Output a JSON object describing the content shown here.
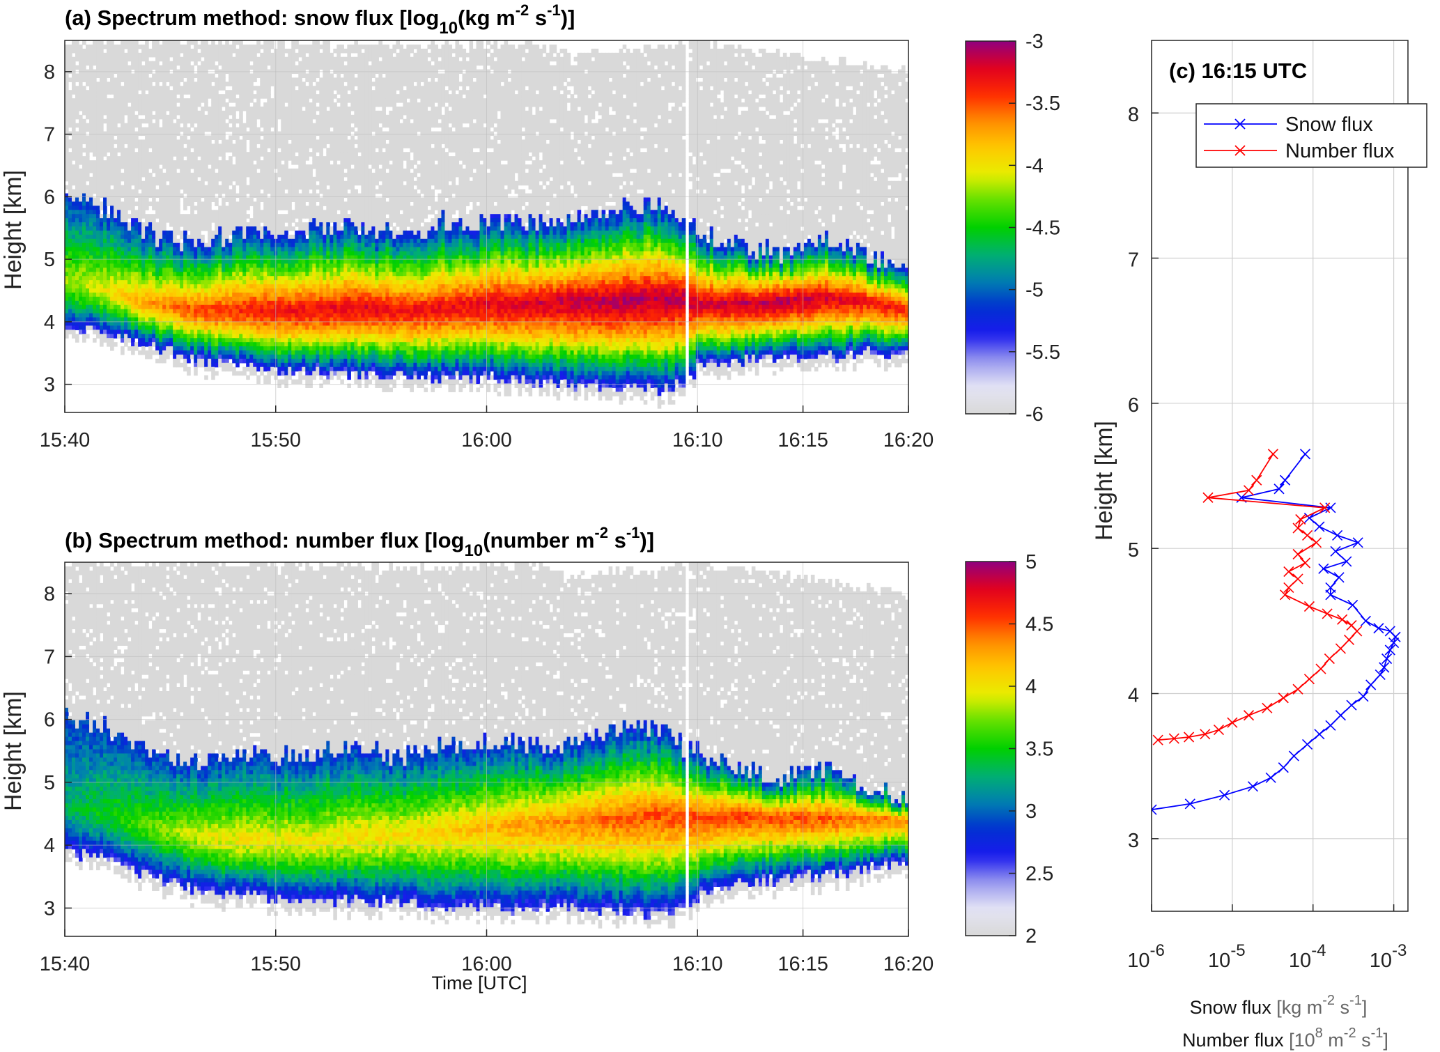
{
  "panels": {
    "a": {
      "title": "(a) Spectrum  method: snow flux [log",
      "title_sub": "10",
      "title_mid": "(kg m",
      "title_sup1": "-2",
      "title_sp": " s",
      "title_sup2": "-1",
      "title_end": ")]",
      "ylabel": "Height [km]",
      "xticks": [
        "15:40",
        "15:50",
        "16:00",
        "16:10",
        "16:15",
        "16:20"
      ],
      "yticks": [
        "3",
        "4",
        "5",
        "6",
        "7",
        "8"
      ],
      "colorbar_ticks": [
        "-3",
        "-3.5",
        "-4",
        "-4.5",
        "-5",
        "-5.5",
        "-6"
      ]
    },
    "b": {
      "title": "(b) Spectrum  method: number flux [log",
      "title_sub": "10",
      "title_mid": "(number m",
      "title_sup1": "-2",
      "title_sp": " s",
      "title_sup2": "-1",
      "title_end": ")]",
      "ylabel": "Height [km]",
      "xlabel": "Time [UTC]",
      "xticks": [
        "15:40",
        "15:50",
        "16:00",
        "16:10",
        "16:15",
        "16:20"
      ],
      "yticks": [
        "3",
        "4",
        "5",
        "6",
        "7",
        "8"
      ],
      "colorbar_ticks": [
        "5",
        "4.5",
        "4",
        "3.5",
        "3",
        "2.5",
        "2"
      ]
    },
    "c": {
      "annotation": "(c) 16:15 UTC",
      "ylabel": "Height [km]",
      "yticks": [
        "3",
        "4",
        "5",
        "6",
        "7",
        "8"
      ],
      "xtick_base": "10",
      "xtick_exps": [
        "-6",
        "-5",
        "-4",
        "-3"
      ],
      "xlabel_line1_a": "Snow flux ",
      "xlabel_line1_b": "[kg m",
      "xlabel_line1_sup1": "-2",
      "xlabel_line1_c": " s",
      "xlabel_line1_sup2": "-1",
      "xlabel_line1_d": "]",
      "xlabel_line2_a": "Number flux ",
      "xlabel_line2_b": "[10",
      "xlabel_line2_sup0": "8",
      "xlabel_line2_c": " m",
      "xlabel_line2_sup1": "-2",
      "xlabel_line2_d": " s",
      "xlabel_line2_sup2": "-1",
      "xlabel_line2_e": "]",
      "legend": [
        "Snow flux",
        "Number flux"
      ]
    }
  },
  "colors": {
    "snow_series": "#0000ff",
    "number_series": "#ff0000",
    "background_echo": "#dadada",
    "colormap": [
      "#d9d9d9",
      "#e4e4f4",
      "#9898ee",
      "#1a1aee",
      "#0030d0",
      "#0080b0",
      "#00b070",
      "#00d000",
      "#60e000",
      "#e8ee00",
      "#ffc800",
      "#ff8c00",
      "#ff2a00",
      "#e00020",
      "#900080"
    ]
  },
  "chart_data": [
    {
      "type": "heatmap",
      "panel": "a",
      "title": "(a) Spectrum method: snow flux [log10(kg m-2 s-1)]",
      "xlabel": "",
      "ylabel": "Height [km]",
      "x_range": [
        "15:40",
        "16:20"
      ],
      "ylim": [
        2.55,
        8.5
      ],
      "color_range": [
        -6,
        -3
      ],
      "colorbar_ticks": [
        -3,
        -3.5,
        -4,
        -4.5,
        -5,
        -5.5,
        -6
      ],
      "gap_time": "16:09.5",
      "echo_profile": {
        "time_min": [
          0,
          2,
          4,
          6,
          8,
          10,
          12,
          14,
          16,
          18,
          20,
          22,
          24,
          26,
          28,
          29.5,
          30,
          32,
          34,
          36,
          38,
          40
        ],
        "cloud_top_km": [
          6.1,
          5.8,
          5.4,
          5.3,
          5.4,
          5.4,
          5.5,
          5.5,
          5.4,
          5.6,
          5.6,
          5.6,
          5.6,
          5.8,
          5.9,
          5.5,
          5.5,
          5.2,
          5.1,
          5.3,
          5.1,
          4.7
        ],
        "cloud_base_km": [
          3.9,
          3.8,
          3.6,
          3.4,
          3.3,
          3.2,
          3.2,
          3.15,
          3.15,
          3.1,
          3.1,
          3.05,
          3.0,
          3.0,
          2.9,
          3.0,
          3.3,
          3.35,
          3.4,
          3.45,
          3.5,
          3.5
        ],
        "peak_height_km": [
          4.7,
          4.5,
          4.3,
          4.2,
          4.2,
          4.2,
          4.2,
          4.25,
          4.2,
          4.25,
          4.3,
          4.3,
          4.35,
          4.35,
          4.4,
          4.4,
          4.3,
          4.3,
          4.35,
          4.4,
          4.35,
          4.2
        ],
        "peak_value": [
          -4.2,
          -4.0,
          -3.7,
          -3.5,
          -3.4,
          -3.3,
          -3.3,
          -3.25,
          -3.3,
          -3.3,
          -3.25,
          -3.2,
          -3.15,
          -3.1,
          -3.1,
          -3.1,
          -3.2,
          -3.15,
          -3.1,
          -3.2,
          -3.3,
          -3.4
        ],
        "echo_top_km": [
          8.5,
          8.5,
          8.5,
          8.5,
          8.5,
          8.45,
          8.45,
          8.45,
          8.4,
          8.4,
          8.45,
          8.45,
          8.3,
          8.35,
          8.4,
          8.5,
          8.5,
          8.4,
          8.3,
          8.2,
          8.1,
          8.0
        ]
      }
    },
    {
      "type": "heatmap",
      "panel": "b",
      "title": "(b) Spectrum method: number flux [log10(number m-2 s-1)]",
      "xlabel": "Time [UTC]",
      "ylabel": "Height [km]",
      "x_range": [
        "15:40",
        "16:20"
      ],
      "ylim": [
        2.55,
        8.5
      ],
      "color_range": [
        2,
        5
      ],
      "colorbar_ticks": [
        5,
        4.5,
        4,
        3.5,
        3,
        2.5,
        2
      ],
      "gap_time": "16:09.5",
      "echo_profile": {
        "time_min": [
          0,
          2,
          4,
          6,
          8,
          10,
          12,
          14,
          16,
          18,
          20,
          22,
          24,
          26,
          28,
          29.5,
          30,
          32,
          34,
          36,
          38,
          40
        ],
        "cloud_top_km": [
          6.1,
          5.9,
          5.4,
          5.3,
          5.4,
          5.4,
          5.5,
          5.5,
          5.4,
          5.6,
          5.6,
          5.6,
          5.6,
          5.8,
          5.9,
          5.5,
          5.5,
          5.2,
          5.1,
          5.2,
          5.0,
          4.7
        ],
        "cloud_base_km": [
          3.9,
          3.8,
          3.5,
          3.3,
          3.2,
          3.15,
          3.1,
          3.1,
          3.1,
          3.0,
          3.0,
          3.0,
          3.0,
          2.95,
          2.9,
          3.0,
          3.2,
          3.35,
          3.45,
          3.5,
          3.6,
          3.75
        ],
        "peak_height_km": [
          4.6,
          4.5,
          4.3,
          4.2,
          4.1,
          4.1,
          4.1,
          4.15,
          4.2,
          4.25,
          4.3,
          4.35,
          4.4,
          4.45,
          4.5,
          4.5,
          4.45,
          4.5,
          4.45,
          4.45,
          4.45,
          4.4
        ],
        "peak_value": [
          3.3,
          3.5,
          3.7,
          3.9,
          4.0,
          4.0,
          4.0,
          4.05,
          4.05,
          4.1,
          4.2,
          4.3,
          4.35,
          4.45,
          4.5,
          4.5,
          4.55,
          4.55,
          4.5,
          4.5,
          4.4,
          4.35
        ],
        "echo_top_km": [
          8.5,
          8.5,
          8.5,
          8.5,
          8.5,
          8.45,
          8.45,
          8.45,
          8.4,
          8.4,
          8.45,
          8.45,
          8.3,
          8.35,
          8.4,
          8.5,
          8.5,
          8.4,
          8.3,
          8.2,
          8.1,
          8.0
        ]
      }
    },
    {
      "type": "line",
      "panel": "c",
      "title": "(c) 16:15 UTC",
      "xlabel": "Snow flux [kg m-2 s-1] / Number flux [10^8 m-2 s-1]",
      "ylabel": "Height [km]",
      "xscale": "log",
      "xlim": [
        1e-06,
        0.0015
      ],
      "ylim": [
        2.5,
        8.5
      ],
      "grid": true,
      "legend_position": "top-right",
      "series": [
        {
          "name": "Snow flux",
          "color": "#0000ff",
          "marker": "x",
          "x": [
            8e-05,
            4.5e-05,
            3.8e-05,
            1.3e-05,
            0.000165,
            9e-05,
            0.00012,
            0.0002,
            0.00036,
            0.00019,
            0.00026,
            0.000135,
            0.00021,
            0.000165,
            0.000165,
            0.00031,
            0.00045,
            0.00065,
            0.0009,
            0.00105,
            0.001,
            0.0009,
            0.00082,
            0.00076,
            0.00068,
            0.00052,
            0.00042,
            0.0003,
            0.00022,
            0.000165,
            0.00012,
            8.5e-05,
            5.8e-05,
            4.3e-05,
            3e-05,
            1.8e-05,
            8e-06,
            3e-06,
            1e-06
          ],
          "y": [
            5.65,
            5.47,
            5.41,
            5.35,
            5.28,
            5.21,
            5.15,
            5.09,
            5.04,
            4.98,
            4.91,
            4.86,
            4.8,
            4.73,
            4.68,
            4.61,
            4.5,
            4.45,
            4.43,
            4.39,
            4.35,
            4.3,
            4.24,
            4.18,
            4.13,
            4.06,
            3.98,
            3.92,
            3.85,
            3.78,
            3.72,
            3.65,
            3.57,
            3.49,
            3.42,
            3.36,
            3.3,
            3.24,
            3.2
          ]
        },
        {
          "name": "Number flux",
          "color": "#ff0000",
          "marker": "x",
          "x": [
            3.2e-05,
            2e-05,
            1.6e-05,
            5e-06,
            0.00014,
            7e-05,
            6.5e-05,
            8.5e-05,
            0.00011,
            6.5e-05,
            8e-05,
            5e-05,
            6.5e-05,
            5e-05,
            4.5e-05,
            9e-05,
            0.00015,
            0.00023,
            0.0003,
            0.00035,
            0.00028,
            0.00022,
            0.00016,
            0.000125,
            9e-05,
            6.5e-05,
            4.3e-05,
            2.7e-05,
            1.6e-05,
            1e-05,
            6.8e-06,
            4.6e-06,
            2.9e-06,
            1.9e-06,
            1.2e-06
          ],
          "y": [
            5.65,
            5.47,
            5.4,
            5.35,
            5.28,
            5.2,
            5.14,
            5.09,
            5.04,
            4.96,
            4.9,
            4.84,
            4.79,
            4.73,
            4.68,
            4.6,
            4.55,
            4.51,
            4.47,
            4.43,
            4.37,
            4.31,
            4.24,
            4.17,
            4.1,
            4.03,
            3.97,
            3.9,
            3.85,
            3.8,
            3.75,
            3.72,
            3.7,
            3.69,
            3.68
          ]
        }
      ]
    }
  ]
}
